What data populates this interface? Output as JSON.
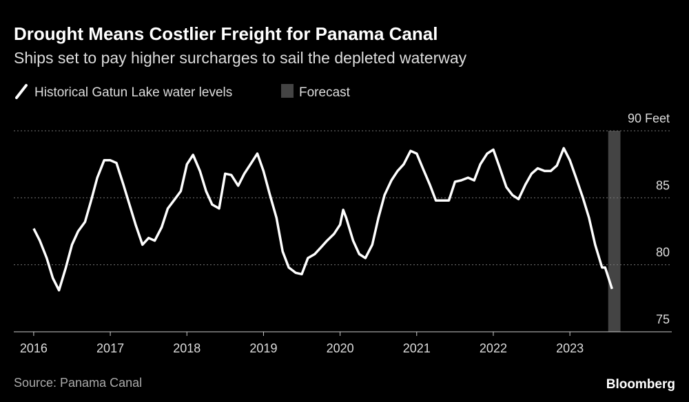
{
  "chart_data": {
    "type": "line",
    "title": "Drought Means Costlier Freight for Panama Canal",
    "subtitle": "Ships set to pay higher surcharges to sail the depleted waterway",
    "source": "Source: Panama Canal",
    "brand": "Bloomberg",
    "x": [
      2016.0,
      2016.08,
      2016.17,
      2016.25,
      2016.33,
      2016.42,
      2016.5,
      2016.58,
      2016.67,
      2016.75,
      2016.83,
      2016.92,
      2017.0,
      2017.08,
      2017.17,
      2017.25,
      2017.33,
      2017.42,
      2017.5,
      2017.58,
      2017.67,
      2017.75,
      2017.83,
      2017.92,
      2018.0,
      2018.08,
      2018.17,
      2018.25,
      2018.33,
      2018.42,
      2018.5,
      2018.58,
      2018.67,
      2018.75,
      2018.83,
      2018.92,
      2019.0,
      2019.08,
      2019.17,
      2019.25,
      2019.33,
      2019.42,
      2019.5,
      2019.58,
      2019.67,
      2019.75,
      2019.83,
      2019.92,
      2020.0,
      2020.04,
      2020.08,
      2020.17,
      2020.25,
      2020.33,
      2020.42,
      2020.5,
      2020.58,
      2020.67,
      2020.75,
      2020.83,
      2020.92,
      2021.0,
      2021.08,
      2021.17,
      2021.25,
      2021.33,
      2021.42,
      2021.5,
      2021.58,
      2021.67,
      2021.75,
      2021.83,
      2021.92,
      2022.0,
      2022.08,
      2022.17,
      2022.25,
      2022.33,
      2022.42,
      2022.5,
      2022.58,
      2022.67,
      2022.75,
      2022.83,
      2022.92,
      2023.0,
      2023.08,
      2023.17,
      2023.25,
      2023.33,
      2023.42,
      2023.46,
      2023.55
    ],
    "series": [
      {
        "name": "Historical Gatun Lake water levels",
        "color": "#ffffff",
        "values": [
          82.7,
          81.8,
          80.5,
          79.0,
          78.1,
          79.8,
          81.5,
          82.5,
          83.2,
          84.8,
          86.5,
          87.8,
          87.8,
          87.6,
          86.0,
          84.5,
          83.0,
          81.5,
          82.0,
          81.8,
          82.8,
          84.2,
          84.8,
          85.5,
          87.5,
          88.2,
          87.0,
          85.5,
          84.5,
          84.2,
          86.8,
          86.7,
          85.9,
          86.8,
          87.5,
          88.3,
          87.0,
          85.3,
          83.5,
          81.0,
          79.8,
          79.4,
          79.3,
          80.5,
          80.8,
          81.3,
          81.8,
          82.3,
          83.0,
          84.1,
          83.5,
          81.8,
          80.8,
          80.5,
          81.5,
          83.5,
          85.2,
          86.3,
          87.0,
          87.5,
          88.5,
          88.3,
          87.2,
          86.0,
          84.8,
          84.8,
          84.8,
          86.2,
          86.3,
          86.5,
          86.3,
          87.5,
          88.3,
          88.6,
          87.3,
          85.8,
          85.2,
          84.9,
          86.0,
          86.8,
          87.2,
          87.0,
          87.0,
          87.4,
          88.7,
          87.8,
          86.5,
          85.0,
          83.5,
          81.5,
          79.8,
          79.8,
          78.2
        ]
      }
    ],
    "forecast": {
      "name": "Forecast",
      "color": "#444444",
      "x": [
        2023.5,
        2023.66
      ]
    },
    "xlim": [
      2015.74,
      2024.33
    ],
    "xticks": [
      2016,
      2017,
      2018,
      2019,
      2020,
      2021,
      2022,
      2023
    ],
    "ylim": [
      75,
      90
    ],
    "yticks": [
      75,
      80,
      85,
      {
        "value": 90,
        "label": "90 Feet"
      }
    ],
    "grid": true
  }
}
